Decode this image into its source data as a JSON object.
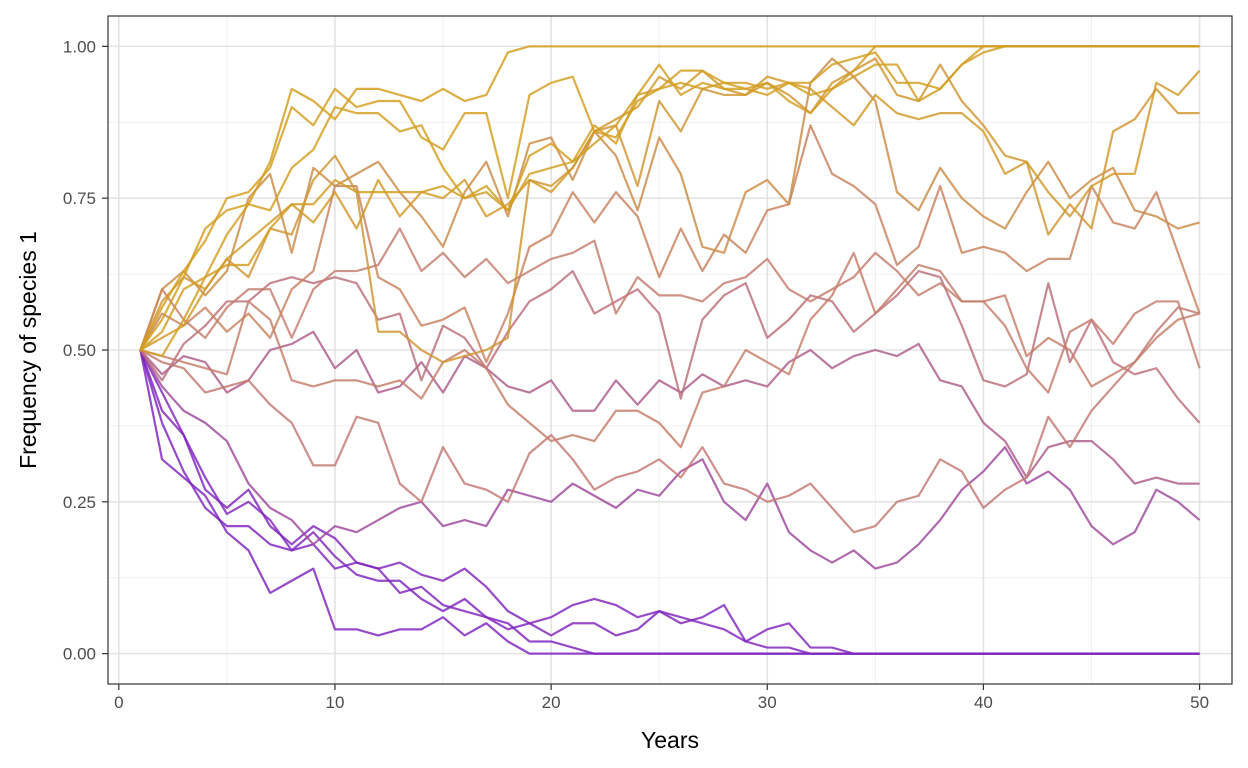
{
  "chart_data": {
    "type": "line",
    "title": "",
    "xlabel": "Years",
    "ylabel": "Frequency of species 1",
    "xlim": [
      -0.5,
      51.5
    ],
    "ylim": [
      -0.05,
      1.05
    ],
    "x_ticks": [
      0,
      10,
      20,
      30,
      40,
      50
    ],
    "x_tick_labels": [
      "0",
      "10",
      "20",
      "30",
      "40",
      "50"
    ],
    "y_ticks": [
      0,
      0.25,
      0.5,
      0.75,
      1.0
    ],
    "y_tick_labels": [
      "0.00",
      "0.25",
      "0.50",
      "0.75",
      "1.00"
    ],
    "grid": true,
    "legend": "none",
    "color_scale": {
      "low": "#7B1FC2",
      "high": "#D4A017",
      "mid": "#C47A6E"
    },
    "x": [
      1,
      2,
      3,
      4,
      5,
      6,
      7,
      8,
      9,
      10,
      11,
      12,
      13,
      14,
      15,
      16,
      17,
      18,
      19,
      20,
      21,
      22,
      23,
      24,
      25,
      26,
      27,
      28,
      29,
      30,
      31,
      32,
      33,
      34,
      35,
      36,
      37,
      38,
      39,
      40,
      41,
      42,
      43,
      44,
      45,
      46,
      47,
      48,
      49,
      50
    ],
    "series": [
      {
        "values": [
          0.5,
          0.57,
          0.63,
          0.68,
          0.75,
          0.76,
          0.8,
          0.9,
          0.87,
          0.93,
          0.9,
          0.91,
          0.91,
          0.85,
          0.83,
          0.89,
          0.89,
          0.75,
          0.92,
          0.94,
          0.95,
          0.86,
          0.85,
          0.91,
          0.93,
          0.96,
          0.96,
          0.94,
          0.94,
          0.93,
          0.94,
          0.92,
          0.93,
          0.96,
          1.0,
          1.0,
          1.0,
          1.0,
          1.0,
          1.0,
          1.0,
          1.0,
          1.0,
          1.0,
          1.0,
          1.0,
          1.0,
          1.0,
          1.0,
          1.0
        ]
      },
      {
        "values": [
          0.5,
          0.55,
          0.62,
          0.7,
          0.73,
          0.74,
          0.81,
          0.93,
          0.91,
          0.88,
          0.93,
          0.93,
          0.92,
          0.91,
          0.93,
          0.91,
          0.92,
          0.99,
          1.0,
          1.0,
          1.0,
          1.0,
          1.0,
          1.0,
          1.0,
          1.0,
          1.0,
          1.0,
          1.0,
          1.0,
          1.0,
          1.0,
          1.0,
          1.0,
          1.0,
          1.0,
          1.0,
          1.0,
          1.0,
          1.0,
          1.0,
          1.0,
          1.0,
          1.0,
          1.0,
          1.0,
          1.0,
          1.0,
          1.0,
          1.0
        ]
      },
      {
        "values": [
          0.5,
          0.53,
          0.6,
          0.62,
          0.69,
          0.74,
          0.73,
          0.8,
          0.83,
          0.9,
          0.89,
          0.89,
          0.86,
          0.87,
          0.8,
          0.75,
          0.77,
          0.73,
          0.82,
          0.84,
          0.81,
          0.87,
          0.84,
          0.92,
          0.97,
          0.92,
          0.94,
          0.93,
          0.93,
          0.92,
          0.94,
          0.94,
          0.97,
          0.98,
          0.99,
          0.94,
          0.94,
          0.93,
          0.97,
          1.0,
          1.0,
          1.0,
          1.0,
          1.0,
          1.0,
          1.0,
          1.0,
          1.0,
          1.0,
          1.0
        ]
      },
      {
        "values": [
          0.5,
          0.49,
          0.55,
          0.62,
          0.64,
          0.64,
          0.7,
          0.74,
          0.74,
          0.78,
          0.76,
          0.76,
          0.76,
          0.76,
          0.77,
          0.75,
          0.76,
          0.73,
          0.79,
          0.8,
          0.81,
          0.84,
          0.87,
          0.92,
          0.93,
          0.94,
          0.93,
          0.94,
          0.93,
          0.94,
          0.91,
          0.89,
          0.93,
          0.95,
          0.97,
          0.97,
          0.91,
          0.93,
          0.97,
          0.99,
          1.0,
          1.0,
          1.0,
          1.0,
          1.0,
          1.0,
          1.0,
          1.0,
          1.0,
          1.0
        ]
      },
      {
        "values": [
          0.5,
          0.52,
          0.54,
          0.6,
          0.65,
          0.68,
          0.71,
          0.74,
          0.71,
          0.76,
          0.7,
          0.78,
          0.72,
          0.76,
          0.75,
          0.78,
          0.72,
          0.74,
          0.78,
          0.76,
          0.8,
          0.86,
          0.88,
          0.9,
          0.95,
          0.93,
          0.96,
          0.93,
          0.92,
          0.95,
          0.94,
          0.93,
          0.9,
          0.87,
          0.92,
          0.89,
          0.88,
          0.89,
          0.89,
          0.86,
          0.79,
          0.81,
          0.76,
          0.72,
          0.77,
          0.79,
          0.79,
          0.94,
          0.92,
          0.96
        ]
      },
      {
        "values": [
          0.5,
          0.58,
          0.62,
          0.6,
          0.65,
          0.62,
          0.7,
          0.69,
          0.78,
          0.82,
          0.76,
          0.53,
          0.53,
          0.5,
          0.48,
          0.49,
          0.5,
          0.52,
          0.78,
          0.77,
          0.8,
          0.86,
          0.87,
          0.77,
          0.91,
          0.86,
          0.93,
          0.92,
          0.92,
          0.94,
          0.92,
          0.89,
          0.94,
          0.96,
          0.98,
          0.92,
          0.91,
          0.97,
          0.91,
          0.87,
          0.82,
          0.81,
          0.69,
          0.74,
          0.7,
          0.86,
          0.88,
          0.93,
          0.89,
          0.89
        ]
      },
      {
        "values": [
          0.5,
          0.6,
          0.63,
          0.59,
          0.63,
          0.75,
          0.79,
          0.66,
          0.8,
          0.77,
          0.79,
          0.81,
          0.76,
          0.72,
          0.67,
          0.76,
          0.81,
          0.72,
          0.84,
          0.85,
          0.78,
          0.86,
          0.82,
          0.73,
          0.85,
          0.79,
          0.67,
          0.66,
          0.76,
          0.78,
          0.74,
          0.94,
          0.98,
          0.95,
          0.91,
          0.76,
          0.73,
          0.8,
          0.75,
          0.72,
          0.7,
          0.76,
          0.81,
          0.75,
          0.78,
          0.8,
          0.73,
          0.72,
          0.7,
          0.71
        ]
      },
      {
        "values": [
          0.5,
          0.56,
          0.54,
          0.57,
          0.53,
          0.56,
          0.52,
          0.6,
          0.63,
          0.77,
          0.77,
          0.62,
          0.6,
          0.54,
          0.55,
          0.57,
          0.48,
          0.56,
          0.67,
          0.69,
          0.76,
          0.71,
          0.76,
          0.72,
          0.62,
          0.7,
          0.63,
          0.69,
          0.66,
          0.73,
          0.74,
          0.87,
          0.79,
          0.77,
          0.74,
          0.64,
          0.67,
          0.77,
          0.66,
          0.67,
          0.66,
          0.63,
          0.65,
          0.65,
          0.77,
          0.71,
          0.7,
          0.76,
          0.66,
          0.56
        ]
      },
      {
        "values": [
          0.5,
          0.6,
          0.55,
          0.52,
          0.57,
          0.6,
          0.6,
          0.52,
          0.6,
          0.63,
          0.63,
          0.64,
          0.7,
          0.63,
          0.66,
          0.62,
          0.65,
          0.61,
          0.63,
          0.65,
          0.66,
          0.68,
          0.56,
          0.62,
          0.59,
          0.59,
          0.58,
          0.61,
          0.62,
          0.65,
          0.6,
          0.58,
          0.6,
          0.62,
          0.66,
          0.63,
          0.59,
          0.61,
          0.58,
          0.58,
          0.54,
          0.47,
          0.43,
          0.53,
          0.55,
          0.51,
          0.56,
          0.58,
          0.58,
          0.47
        ]
      },
      {
        "values": [
          0.5,
          0.45,
          0.51,
          0.54,
          0.58,
          0.58,
          0.61,
          0.62,
          0.61,
          0.62,
          0.61,
          0.55,
          0.56,
          0.45,
          0.54,
          0.52,
          0.47,
          0.53,
          0.58,
          0.6,
          0.63,
          0.56,
          0.58,
          0.6,
          0.56,
          0.42,
          0.55,
          0.59,
          0.61,
          0.52,
          0.55,
          0.59,
          0.58,
          0.53,
          0.56,
          0.59,
          0.63,
          0.62,
          0.54,
          0.45,
          0.44,
          0.46,
          0.61,
          0.48,
          0.55,
          0.48,
          0.46,
          0.47,
          0.42,
          0.38
        ]
      },
      {
        "values": [
          0.5,
          0.49,
          0.48,
          0.47,
          0.46,
          0.58,
          0.55,
          0.45,
          0.44,
          0.45,
          0.45,
          0.44,
          0.45,
          0.42,
          0.48,
          0.5,
          0.47,
          0.41,
          0.38,
          0.35,
          0.36,
          0.35,
          0.4,
          0.4,
          0.38,
          0.34,
          0.43,
          0.44,
          0.5,
          0.48,
          0.46,
          0.55,
          0.59,
          0.66,
          0.56,
          0.6,
          0.64,
          0.63,
          0.58,
          0.58,
          0.59,
          0.49,
          0.52,
          0.5,
          0.44,
          0.46,
          0.48,
          0.52,
          0.55,
          0.56
        ]
      },
      {
        "values": [
          0.5,
          0.46,
          0.49,
          0.48,
          0.43,
          0.45,
          0.5,
          0.51,
          0.53,
          0.47,
          0.5,
          0.43,
          0.44,
          0.48,
          0.43,
          0.49,
          0.47,
          0.44,
          0.43,
          0.45,
          0.4,
          0.4,
          0.45,
          0.41,
          0.45,
          0.43,
          0.46,
          0.44,
          0.45,
          0.44,
          0.48,
          0.5,
          0.47,
          0.49,
          0.5,
          0.49,
          0.51,
          0.45,
          0.44,
          0.38,
          0.35,
          0.29,
          0.34,
          0.35,
          0.35,
          0.32,
          0.28,
          0.29,
          0.28,
          0.28
        ]
      },
      {
        "values": [
          0.5,
          0.48,
          0.47,
          0.43,
          0.44,
          0.45,
          0.41,
          0.38,
          0.31,
          0.31,
          0.39,
          0.38,
          0.28,
          0.25,
          0.34,
          0.28,
          0.27,
          0.25,
          0.33,
          0.36,
          0.32,
          0.27,
          0.29,
          0.3,
          0.32,
          0.29,
          0.34,
          0.28,
          0.27,
          0.25,
          0.26,
          0.28,
          0.24,
          0.2,
          0.21,
          0.25,
          0.26,
          0.32,
          0.3,
          0.24,
          0.27,
          0.29,
          0.39,
          0.34,
          0.4,
          0.44,
          0.48,
          0.53,
          0.57,
          0.56
        ]
      },
      {
        "values": [
          0.5,
          0.44,
          0.4,
          0.38,
          0.35,
          0.28,
          0.24,
          0.22,
          0.18,
          0.21,
          0.2,
          0.22,
          0.24,
          0.25,
          0.21,
          0.22,
          0.21,
          0.27,
          0.26,
          0.25,
          0.28,
          0.26,
          0.24,
          0.27,
          0.26,
          0.3,
          0.32,
          0.25,
          0.22,
          0.28,
          0.2,
          0.17,
          0.15,
          0.17,
          0.14,
          0.15,
          0.18,
          0.22,
          0.27,
          0.3,
          0.34,
          0.28,
          0.3,
          0.27,
          0.21,
          0.18,
          0.2,
          0.27,
          0.25,
          0.22
        ]
      },
      {
        "values": [
          0.5,
          0.43,
          0.36,
          0.29,
          0.23,
          0.25,
          0.22,
          0.17,
          0.18,
          0.14,
          0.15,
          0.14,
          0.15,
          0.13,
          0.12,
          0.14,
          0.11,
          0.07,
          0.05,
          0.06,
          0.08,
          0.09,
          0.08,
          0.06,
          0.07,
          0.06,
          0.05,
          0.04,
          0.02,
          0.04,
          0.05,
          0.01,
          0.01,
          0.0,
          0.0,
          0.0,
          0.0,
          0.0,
          0.0,
          0.0,
          0.0,
          0.0,
          0.0,
          0.0,
          0.0,
          0.0,
          0.0,
          0.0,
          0.0,
          0.0
        ]
      },
      {
        "values": [
          0.5,
          0.4,
          0.36,
          0.27,
          0.24,
          0.27,
          0.21,
          0.18,
          0.21,
          0.19,
          0.15,
          0.14,
          0.1,
          0.11,
          0.08,
          0.07,
          0.06,
          0.04,
          0.05,
          0.03,
          0.05,
          0.05,
          0.03,
          0.04,
          0.07,
          0.05,
          0.06,
          0.08,
          0.02,
          0.01,
          0.01,
          0.0,
          0.0,
          0.0,
          0.0,
          0.0,
          0.0,
          0.0,
          0.0,
          0.0,
          0.0,
          0.0,
          0.0,
          0.0,
          0.0,
          0.0,
          0.0,
          0.0,
          0.0,
          0.0
        ]
      },
      {
        "values": [
          0.5,
          0.32,
          0.29,
          0.26,
          0.2,
          0.17,
          0.1,
          0.12,
          0.14,
          0.04,
          0.04,
          0.03,
          0.04,
          0.04,
          0.06,
          0.03,
          0.05,
          0.02,
          0.0,
          0.0,
          0.0,
          0.0,
          0.0,
          0.0,
          0.0,
          0.0,
          0.0,
          0.0,
          0.0,
          0.0,
          0.0,
          0.0,
          0.0,
          0.0,
          0.0,
          0.0,
          0.0,
          0.0,
          0.0,
          0.0,
          0.0,
          0.0,
          0.0,
          0.0,
          0.0,
          0.0,
          0.0,
          0.0,
          0.0,
          0.0
        ]
      },
      {
        "values": [
          0.5,
          0.38,
          0.3,
          0.24,
          0.21,
          0.21,
          0.18,
          0.17,
          0.2,
          0.16,
          0.13,
          0.12,
          0.12,
          0.09,
          0.07,
          0.09,
          0.06,
          0.05,
          0.02,
          0.02,
          0.01,
          0.0,
          0.0,
          0.0,
          0.0,
          0.0,
          0.0,
          0.0,
          0.0,
          0.0,
          0.0,
          0.0,
          0.0,
          0.0,
          0.0,
          0.0,
          0.0,
          0.0,
          0.0,
          0.0,
          0.0,
          0.0,
          0.0,
          0.0,
          0.0,
          0.0,
          0.0,
          0.0,
          0.0,
          0.0
        ]
      }
    ]
  }
}
